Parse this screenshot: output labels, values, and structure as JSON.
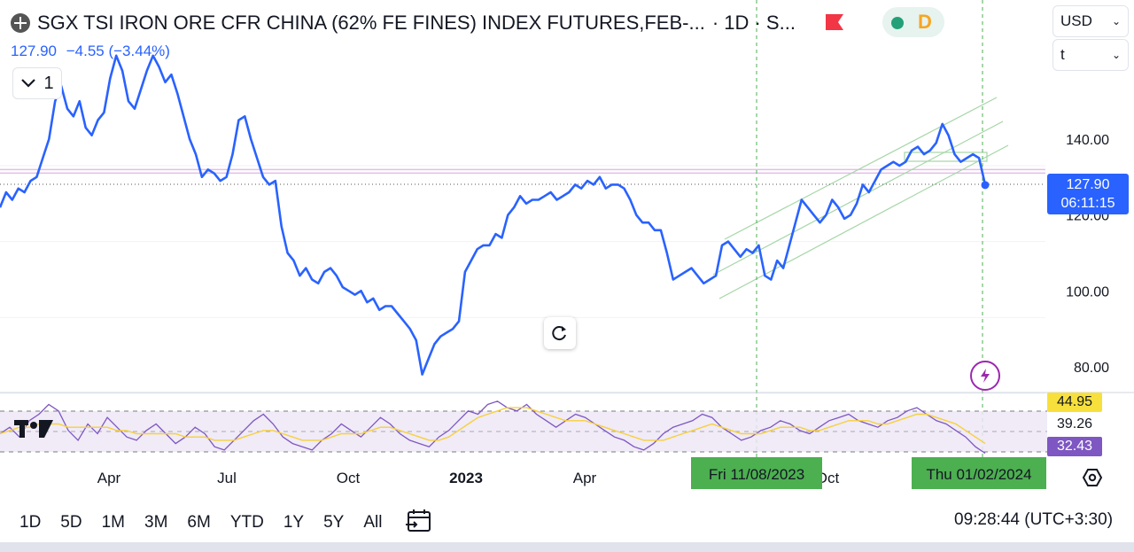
{
  "header": {
    "title": "SGX TSI IRON ORE CFR CHINA (62% FE FINES) INDEX FUTURES,FEB-...",
    "interval": "· 1D · S...",
    "symbol_icon": "symbol-logo-icon",
    "flag_icon": "flag-icon",
    "status_letter": "D"
  },
  "price_line": {
    "last": "127.90",
    "change": "−4.55 (−3.44%)"
  },
  "currency_select": {
    "value": "USD"
  },
  "unit_select": {
    "value": "t"
  },
  "collapse_button": {
    "label": "1"
  },
  "price_tag": {
    "price": "127.90",
    "countdown": "06:11:15"
  },
  "rsi_tags": {
    "upper": "44.95",
    "mid": "39.26",
    "lower": "32.43"
  },
  "crosshair_dates": {
    "left": "Fri 11/08/2023",
    "right": "Thu 01/02/2024"
  },
  "timeframes": [
    "1D",
    "5D",
    "1M",
    "3M",
    "6M",
    "YTD",
    "1Y",
    "5Y",
    "All"
  ],
  "clock": "09:28:44 (UTC+3:30)",
  "colors": {
    "price": "#2962ff",
    "rsi": "#7e57c2",
    "rsi_ma": "#f7d03c",
    "channel": "#a5d6a7",
    "level": "#e1bee7"
  },
  "chart_data": {
    "type": "line",
    "title": "",
    "price_axis": {
      "ticks": [
        80,
        100,
        120,
        140
      ],
      "tick_labels": [
        "80.00",
        "100.00",
        "120.00",
        "140.00"
      ],
      "range": [
        75,
        160
      ]
    },
    "time_axis": {
      "labels": [
        "Apr",
        "Jul",
        "Oct",
        "2023",
        "Apr",
        "Oct"
      ]
    },
    "series": [
      {
        "values": [
          122,
          126,
          124,
          127,
          126,
          129,
          130,
          135,
          140,
          150,
          154,
          148,
          146,
          150,
          143,
          141,
          145,
          147,
          156,
          162,
          158,
          150,
          148,
          153,
          158,
          162,
          159,
          155,
          157,
          152,
          146,
          140,
          136,
          130,
          132,
          131,
          129,
          130,
          136,
          145,
          146,
          140,
          135,
          130,
          128,
          129,
          117,
          110,
          108,
          104,
          106,
          103,
          102,
          105,
          106,
          104,
          101,
          100,
          99,
          100,
          97,
          98,
          95,
          96,
          96,
          94,
          92,
          90,
          87,
          78,
          82,
          86,
          88,
          89,
          90,
          92,
          105,
          108,
          111,
          112,
          112,
          115,
          114,
          120,
          122,
          125,
          123,
          124,
          124,
          125,
          126,
          124,
          125,
          126,
          128,
          127,
          129,
          128,
          130,
          127,
          128,
          128,
          127,
          124,
          120,
          118,
          118,
          116,
          116,
          110,
          103,
          104,
          105,
          106,
          104,
          102,
          103,
          104,
          112,
          113,
          111,
          109,
          111,
          110,
          112,
          104,
          103,
          108,
          106,
          112,
          118,
          124,
          122,
          120,
          118,
          120,
          124,
          122,
          119,
          120,
          123,
          128,
          126,
          129,
          132,
          133,
          134,
          133,
          134,
          137,
          138,
          136,
          137,
          139,
          144,
          141,
          136,
          134,
          135,
          136,
          135,
          128
        ],
        "last": 127.9
      }
    ],
    "price_levels": [
      131.5
    ],
    "trend_channel": "rising parallel channel",
    "rsi": {
      "values": [
        38,
        40,
        37,
        42,
        44,
        47,
        45,
        39,
        36,
        41,
        38,
        43,
        40,
        37,
        36,
        39,
        41,
        38,
        35,
        37,
        40,
        38,
        34,
        33,
        36,
        39,
        42,
        44,
        41,
        37,
        35,
        34,
        33,
        36,
        38,
        41,
        39,
        37,
        40,
        43,
        41,
        38,
        36,
        35,
        34,
        37,
        39,
        42,
        45,
        44,
        47,
        48,
        46,
        45,
        47,
        44,
        42,
        40,
        42,
        44,
        43,
        41,
        39,
        37,
        36,
        34,
        33,
        35,
        38,
        40,
        41,
        42,
        44,
        43,
        40,
        38,
        36,
        37,
        39,
        40,
        42,
        41,
        39,
        38,
        40,
        42,
        43,
        44,
        42,
        41,
        40,
        42,
        43,
        45,
        46,
        44,
        42,
        41,
        39,
        37,
        34,
        32
      ],
      "ma_values": [
        38,
        39,
        40,
        40,
        41,
        41,
        41,
        40,
        40,
        40,
        40,
        40,
        39,
        39,
        38,
        38,
        38,
        38,
        38,
        37,
        37,
        37,
        36,
        36,
        36,
        37,
        38,
        39,
        39,
        38,
        37,
        36,
        36,
        36,
        37,
        38,
        38,
        38,
        39,
        40,
        40,
        39,
        38,
        37,
        36,
        36,
        37,
        39,
        41,
        43,
        44,
        45,
        46,
        46,
        46,
        45,
        44,
        43,
        42,
        42,
        42,
        41,
        40,
        39,
        38,
        37,
        36,
        36,
        36,
        37,
        38,
        39,
        40,
        41,
        40,
        39,
        38,
        38,
        38,
        39,
        40,
        40,
        40,
        39,
        39,
        40,
        41,
        42,
        42,
        42,
        41,
        41,
        42,
        43,
        44,
        44,
        43,
        42,
        41,
        39,
        37,
        35
      ],
      "levels": [
        44.95,
        39.26,
        32.43
      ]
    }
  }
}
